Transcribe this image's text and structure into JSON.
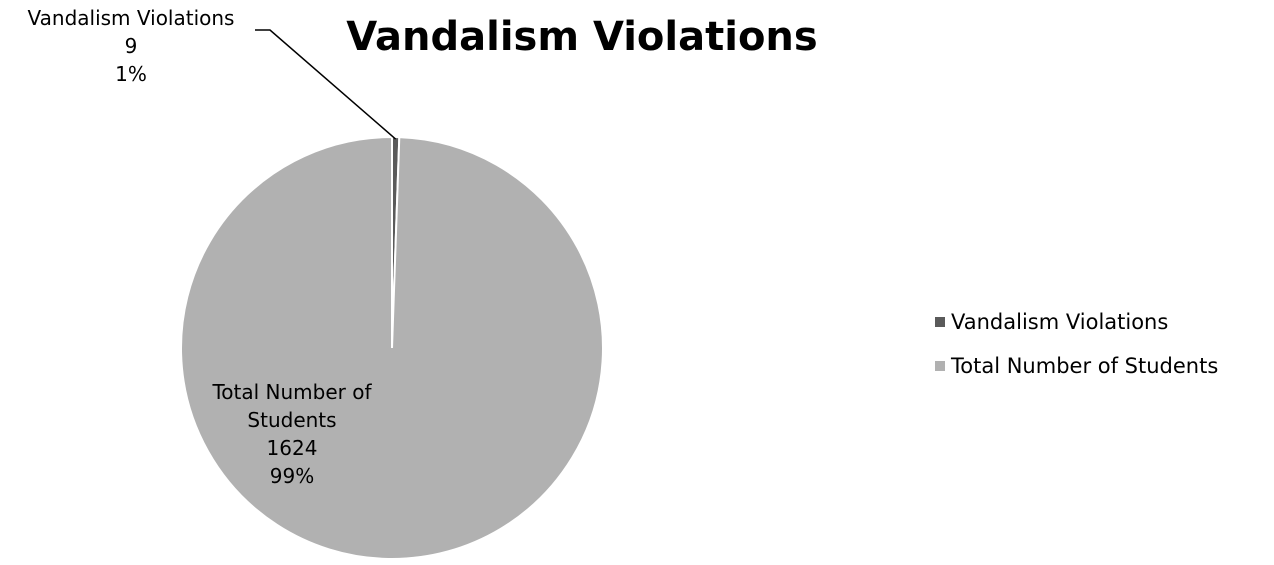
{
  "chart_data": {
    "type": "pie",
    "title": "Vandalism Violations",
    "categories": [
      "Vandalism Violations",
      "Total Number of Students"
    ],
    "values": [
      9,
      1624
    ],
    "percent_labels": [
      "1%",
      "99%"
    ],
    "colors": [
      "#5a5a5a",
      "#b1b1b1"
    ],
    "legend": "right"
  }
}
